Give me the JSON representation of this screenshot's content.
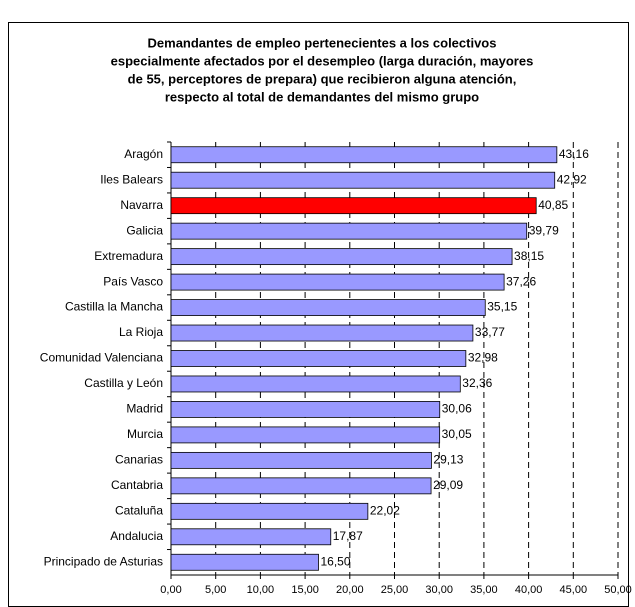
{
  "chart_data": {
    "type": "bar",
    "orientation": "horizontal",
    "title": [
      "Demandantes de empleo pertenecientes a los colectivos",
      "especialmente afectados por el desempleo (larga duración, mayores",
      "de 55, perceptores de prepara) que recibieron alguna atención,",
      "respecto al total de demandantes del mismo grupo"
    ],
    "categories": [
      "Aragón",
      "Iles Balears",
      "Navarra",
      "Galicia",
      "Extremadura",
      "País Vasco",
      "Castilla la Mancha",
      "La Rioja",
      "Comunidad Valenciana",
      "Castilla y León",
      "Madrid",
      "Murcia",
      "Canarias",
      "Cantabria",
      "Cataluña",
      "Andalucia",
      "Principado de Asturias"
    ],
    "values": [
      43.16,
      42.92,
      40.85,
      39.79,
      38.15,
      37.26,
      35.15,
      33.77,
      32.98,
      32.36,
      30.06,
      30.05,
      29.13,
      29.09,
      22.02,
      17.87,
      16.5
    ],
    "value_labels": [
      "43,16",
      "42,92",
      "40,85",
      "39,79",
      "38,15",
      "37,26",
      "35,15",
      "33,77",
      "32,98",
      "32,36",
      "30,06",
      "30,05",
      "29,13",
      "29,09",
      "22,02",
      "17,87",
      "16,50"
    ],
    "colors": [
      "#9999ff",
      "#9999ff",
      "#ff0000",
      "#9999ff",
      "#9999ff",
      "#9999ff",
      "#9999ff",
      "#9999ff",
      "#9999ff",
      "#9999ff",
      "#9999ff",
      "#9999ff",
      "#9999ff",
      "#9999ff",
      "#9999ff",
      "#9999ff",
      "#9999ff"
    ],
    "xlim": [
      0,
      50
    ],
    "xticks": [
      {
        "value": 0,
        "label": "0,00"
      },
      {
        "value": 5,
        "label": "5,00"
      },
      {
        "value": 10,
        "label": "10,00"
      },
      {
        "value": 15,
        "label": "15,00"
      },
      {
        "value": 20,
        "label": "20,00"
      },
      {
        "value": 25,
        "label": "25,00"
      },
      {
        "value": 30,
        "label": "30,00"
      },
      {
        "value": 35,
        "label": "35,00"
      },
      {
        "value": 40,
        "label": "40,00"
      },
      {
        "value": 45,
        "label": "45,00"
      },
      {
        "value": 50,
        "label": "50,00"
      }
    ],
    "grid": true
  }
}
